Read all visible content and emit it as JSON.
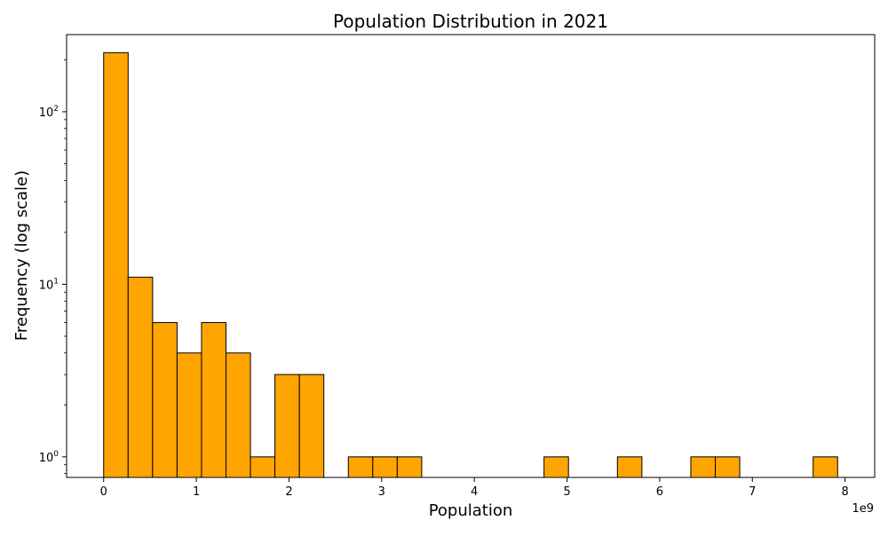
{
  "chart_data": {
    "type": "bar",
    "title": "Population Distribution in 2021",
    "xlabel": "Population",
    "ylabel": "Frequency (log scale)",
    "x_offset_label": "1e9",
    "y_scale": "log",
    "xlim": [
      -0.4,
      8.32
    ],
    "ylim": [
      0.76,
      280
    ],
    "x_ticks": [
      0,
      1,
      2,
      3,
      4,
      5,
      6,
      7,
      8
    ],
    "y_ticks": [
      {
        "value": 1,
        "base": "10",
        "exp": "0"
      },
      {
        "value": 10,
        "base": "10",
        "exp": "1"
      },
      {
        "value": 100,
        "base": "10",
        "exp": "2"
      }
    ],
    "bar_color": "#ffa500",
    "edge_color": "#000000",
    "grid": false,
    "bins": [
      {
        "start": 0.0,
        "end": 0.264,
        "count": 220
      },
      {
        "start": 0.264,
        "end": 0.528,
        "count": 11
      },
      {
        "start": 0.528,
        "end": 0.792,
        "count": 6
      },
      {
        "start": 0.792,
        "end": 1.056,
        "count": 4
      },
      {
        "start": 1.056,
        "end": 1.32,
        "count": 6
      },
      {
        "start": 1.32,
        "end": 1.584,
        "count": 4
      },
      {
        "start": 1.584,
        "end": 1.848,
        "count": 1
      },
      {
        "start": 1.848,
        "end": 2.112,
        "count": 3
      },
      {
        "start": 2.112,
        "end": 2.376,
        "count": 3
      },
      {
        "start": 2.64,
        "end": 2.904,
        "count": 1
      },
      {
        "start": 2.904,
        "end": 3.168,
        "count": 1
      },
      {
        "start": 3.168,
        "end": 3.432,
        "count": 1
      },
      {
        "start": 4.752,
        "end": 5.016,
        "count": 1
      },
      {
        "start": 5.544,
        "end": 5.808,
        "count": 1
      },
      {
        "start": 6.336,
        "end": 6.6,
        "count": 1
      },
      {
        "start": 6.6,
        "end": 6.864,
        "count": 1
      },
      {
        "start": 7.656,
        "end": 7.92,
        "count": 1
      }
    ]
  }
}
